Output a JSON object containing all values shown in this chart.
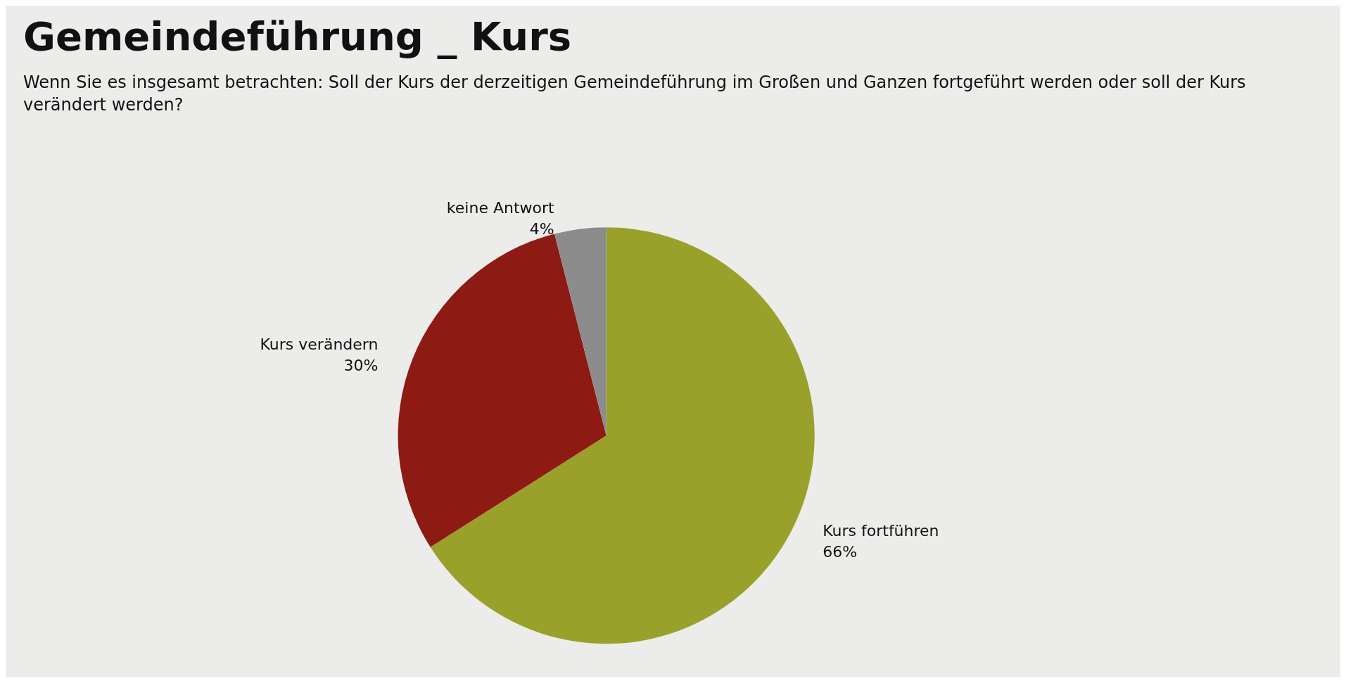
{
  "chart_data": {
    "type": "pie",
    "title": "Gemeindeführung _ Kurs",
    "subtitle": "Wenn Sie es insgesamt betrachten: Soll der Kurs der derzeitigen Gemeindeführung im Großen und Ganzen fortgeführt werden oder soll der Kurs verändert werden?",
    "categories": [
      "Kurs fortführen",
      "Kurs verändern",
      "keine Antwort"
    ],
    "values": [
      66,
      30,
      4
    ],
    "value_labels": [
      "66%",
      "30%",
      "4%"
    ],
    "colors": [
      "#9aa12a",
      "#8e1a14",
      "#8c8c8c"
    ],
    "legend": false
  }
}
